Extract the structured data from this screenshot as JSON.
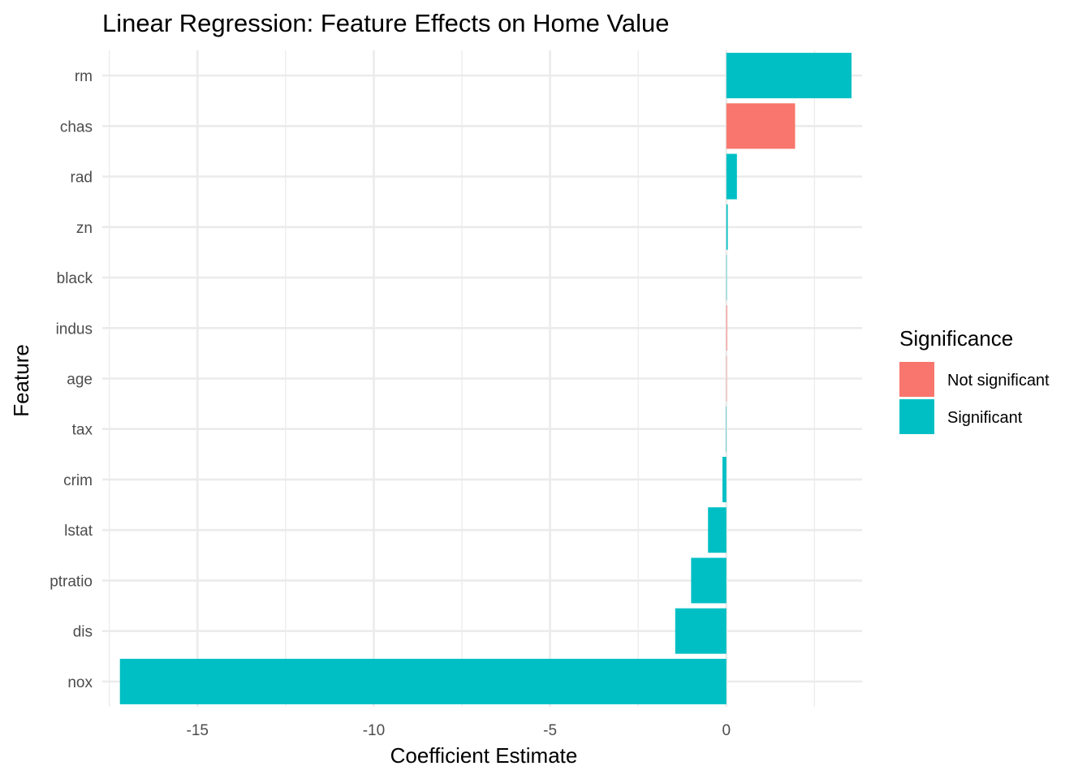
{
  "chart_data": {
    "type": "bar",
    "orientation": "horizontal",
    "title": "Linear Regression: Feature Effects on Home Value",
    "xlabel": "Coefficient Estimate",
    "ylabel": "Feature",
    "xlim": [
      -17.7,
      3.85
    ],
    "x_ticks": [
      -15,
      -10,
      -5,
      0
    ],
    "x_tick_labels": [
      "-15",
      "-10",
      "-5",
      "0"
    ],
    "grid": true,
    "legend_position": "right",
    "legend": {
      "title": "Significance",
      "entries": [
        {
          "label": "Not significant",
          "color": "#f8766d"
        },
        {
          "label": "Significant",
          "color": "#00bfc4"
        }
      ]
    },
    "categories": [
      "rm",
      "chas",
      "rad",
      "zn",
      "black",
      "indus",
      "age",
      "tax",
      "crim",
      "lstat",
      "ptratio",
      "dis",
      "nox"
    ],
    "values": [
      3.55,
      1.95,
      0.3,
      0.04,
      0.009,
      0.02,
      0.001,
      -0.012,
      -0.11,
      -0.52,
      -1.0,
      -1.45,
      -17.2
    ],
    "significance": [
      "Significant",
      "Not significant",
      "Significant",
      "Significant",
      "Significant",
      "Not significant",
      "Not significant",
      "Significant",
      "Significant",
      "Significant",
      "Significant",
      "Significant",
      "Significant"
    ]
  }
}
